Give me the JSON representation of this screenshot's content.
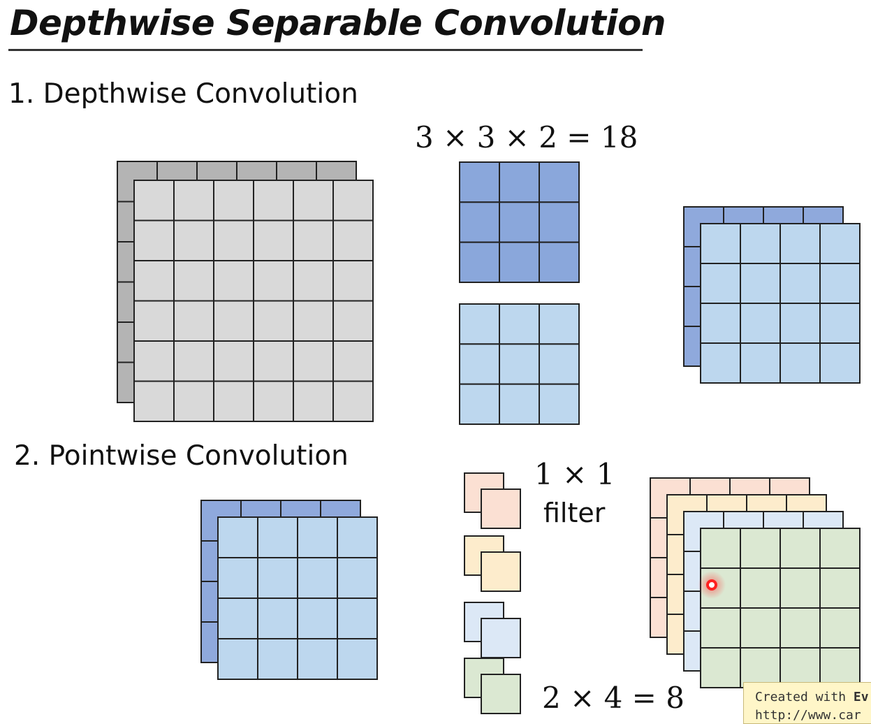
{
  "title": "Depthwise Separable Convolution",
  "section1": {
    "label": "1. Depthwise Convolution",
    "equation": "3 × 3 × 2 = 18"
  },
  "section2": {
    "label": "2. Pointwise Convolution",
    "filter_size": "1 × 1",
    "filter_word": "filter",
    "equation": "2 × 4 = 8"
  },
  "watermark": {
    "line1_prefix": "Created with ",
    "line1_bold": "Ev",
    "line2": "http://www.car"
  },
  "colors": {
    "input_back": "#b4b4b4",
    "input_front": "#d9d9d9",
    "kernel_dark": "#8aa7db",
    "kernel_light": "#bdd7ee",
    "feature_back": "#8fa9dc",
    "feature_front": "#bdd7ee",
    "filter_orange": "#fbe0d3",
    "filter_yellow": "#fdeccc",
    "filter_blue": "#dce8f6",
    "filter_green": "#dbe8d2",
    "grid_line": "#222222",
    "highlight_dot": "#ff2020"
  }
}
